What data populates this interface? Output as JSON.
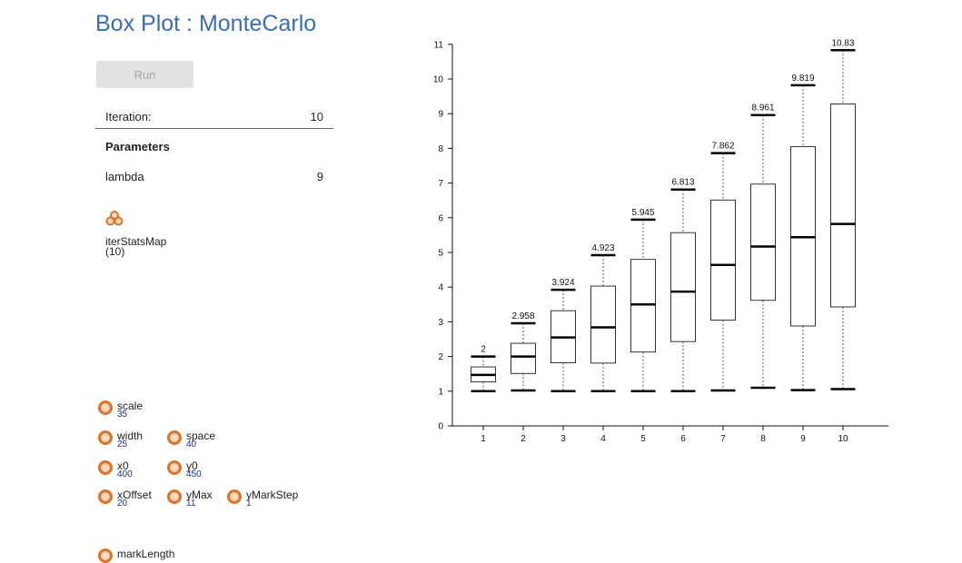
{
  "page": {
    "title": "Box Plot : MonteCarlo"
  },
  "controls": {
    "run_label": "Run",
    "iteration_label": "Iteration:",
    "iteration_value": "10",
    "parameters_heading": "Parameters",
    "lambda_label": "lambda",
    "lambda_value": "9"
  },
  "node": {
    "name": "iterStatsMap",
    "count": "(10)"
  },
  "knobs": {
    "scale": {
      "label": "scale",
      "value": "35"
    },
    "width": {
      "label": "width",
      "value": "25"
    },
    "space": {
      "label": "space",
      "value": "40"
    },
    "x0": {
      "label": "x0",
      "value": "400"
    },
    "y0": {
      "label": "y0",
      "value": "450"
    },
    "xOffset": {
      "label": "xOffset",
      "value": "20"
    },
    "yMax": {
      "label": "yMax",
      "value": "11"
    },
    "yMarkStep": {
      "label": "yMarkStep",
      "value": "1"
    },
    "markLength": {
      "label": "markLength",
      "value": ""
    }
  },
  "colors": {
    "title": "#3a6db3",
    "knob": "#d8762c",
    "knob_value": "#1b2a8a"
  },
  "chart_data": {
    "type": "box",
    "categories": [
      "1",
      "2",
      "3",
      "4",
      "5",
      "6",
      "7",
      "8",
      "9",
      "10"
    ],
    "ylim": [
      0,
      11
    ],
    "yticks": [
      0,
      1,
      2,
      3,
      4,
      5,
      6,
      7,
      8,
      9,
      10,
      11
    ],
    "boxes": [
      {
        "min": 1.0,
        "q1": 1.27,
        "median": 1.47,
        "q3": 1.7,
        "max": 2.0,
        "max_label": "2"
      },
      {
        "min": 1.02,
        "q1": 1.51,
        "median": 2.0,
        "q3": 2.38,
        "max": 2.958,
        "max_label": "2.958"
      },
      {
        "min": 1.0,
        "q1": 1.82,
        "median": 2.55,
        "q3": 3.32,
        "max": 3.924,
        "max_label": "3.924"
      },
      {
        "min": 1.0,
        "q1": 1.81,
        "median": 2.84,
        "q3": 4.03,
        "max": 4.923,
        "max_label": "4.923"
      },
      {
        "min": 1.0,
        "q1": 2.13,
        "median": 3.5,
        "q3": 4.8,
        "max": 5.945,
        "max_label": "5.945"
      },
      {
        "min": 1.0,
        "q1": 2.43,
        "median": 3.87,
        "q3": 5.57,
        "max": 6.813,
        "max_label": "6.813"
      },
      {
        "min": 1.02,
        "q1": 3.05,
        "median": 4.64,
        "q3": 6.51,
        "max": 7.862,
        "max_label": "7.862"
      },
      {
        "min": 1.1,
        "q1": 3.62,
        "median": 5.17,
        "q3": 6.97,
        "max": 8.961,
        "max_label": "8.961"
      },
      {
        "min": 1.03,
        "q1": 2.88,
        "median": 5.44,
        "q3": 8.05,
        "max": 9.819,
        "max_label": "9.819"
      },
      {
        "min": 1.06,
        "q1": 3.43,
        "median": 5.82,
        "q3": 9.28,
        "max": 10.83,
        "max_label": "10.83"
      }
    ]
  }
}
